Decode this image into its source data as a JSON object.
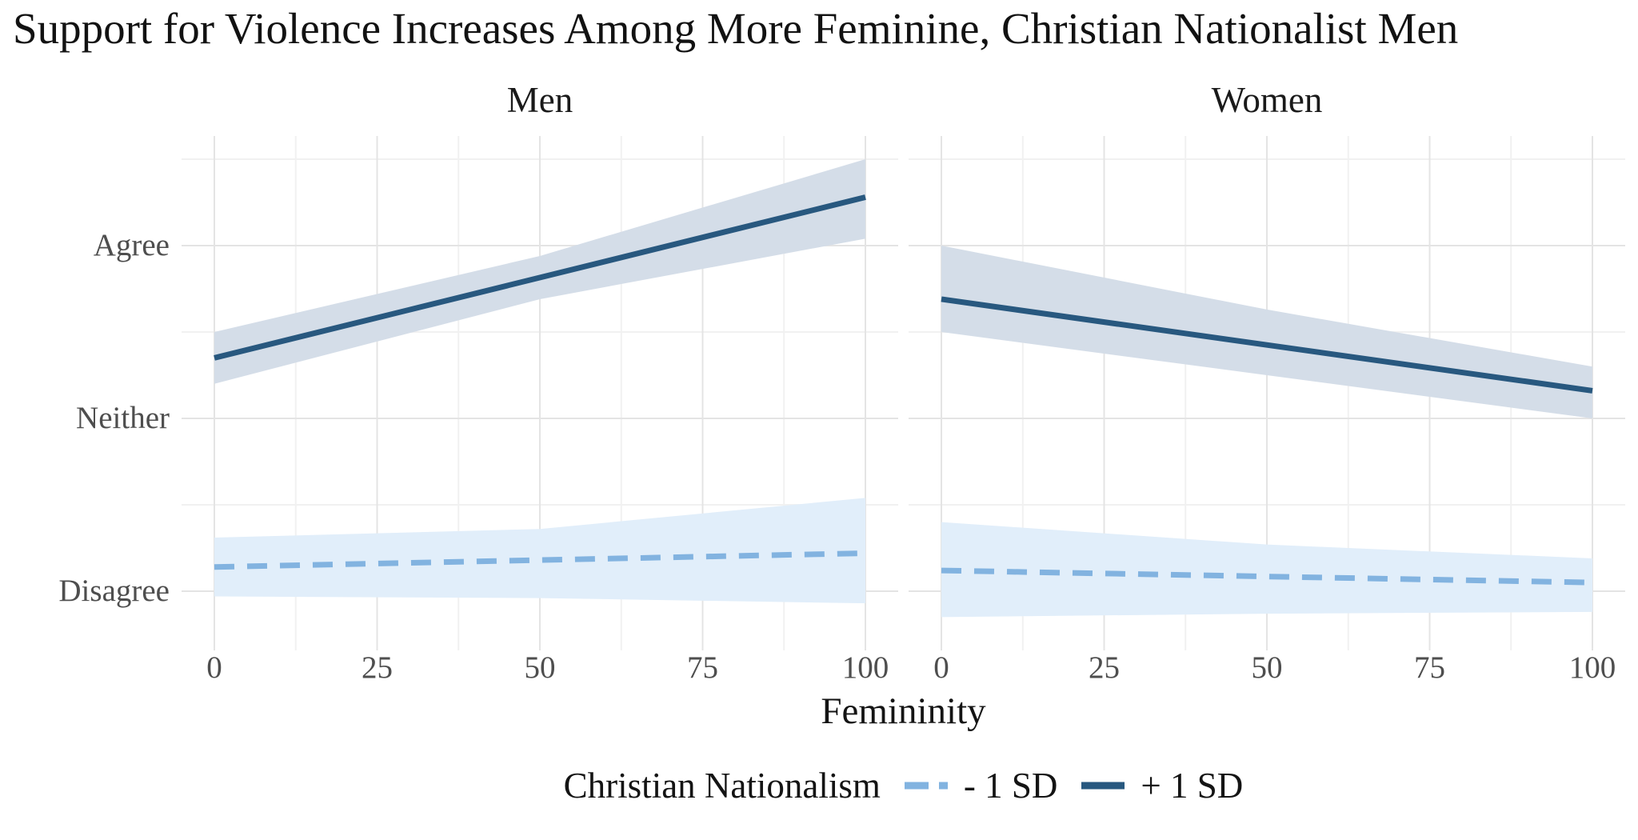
{
  "title": "Support for Violence Increases Among More Feminine, Christian Nationalist Men",
  "legend": {
    "title": "Christian Nationalism",
    "items": [
      {
        "label": "- 1 SD",
        "style": "dashed"
      },
      {
        "label": "+ 1 SD",
        "style": "solid"
      }
    ]
  },
  "colors": {
    "solid_line": "#28587f",
    "solid_ribbon": "#d4dde8",
    "dashed_line": "#82b3e0",
    "dashed_ribbon": "#e1eefa",
    "grid_major": "#e4e4e4",
    "grid_minor": "#f1f1f1",
    "tick_text": "#4e4e4e",
    "title_text": "#121212"
  },
  "chart_data": {
    "type": "line",
    "title": "Support for Violence Increases Among More Feminine, Christian Nationalist Men",
    "x": {
      "label": "Femininity",
      "ticks": [
        0,
        25,
        50,
        75,
        100
      ],
      "minor_ticks": [
        12.5,
        37.5,
        62.5,
        87.5
      ],
      "range": [
        0,
        100
      ]
    },
    "y": {
      "label": "",
      "ticks": [
        {
          "value": 1,
          "label": "Disagree"
        },
        {
          "value": 2,
          "label": "Neither"
        },
        {
          "value": 3,
          "label": "Agree"
        }
      ],
      "minor_ticks": [
        1.5,
        2.5,
        3.5
      ],
      "range": [
        0.66,
        3.63
      ]
    },
    "grid": {
      "major": true,
      "minor": true
    },
    "legend_position": "bottom",
    "facets": [
      {
        "label": "Men",
        "series": [
          {
            "name": "- 1 SD",
            "line": "dashed",
            "points": [
              {
                "x": 0,
                "y": 1.14
              },
              {
                "x": 100,
                "y": 1.22
              }
            ],
            "ribbon": [
              {
                "x": 0,
                "top": 1.31,
                "bottom": 0.97
              },
              {
                "x": 50,
                "top": 1.36,
                "bottom": 0.96
              },
              {
                "x": 100,
                "top": 1.54,
                "bottom": 0.93
              }
            ]
          },
          {
            "name": "+ 1 SD",
            "line": "solid",
            "points": [
              {
                "x": 0,
                "y": 2.35
              },
              {
                "x": 100,
                "y": 3.28
              }
            ],
            "ribbon": [
              {
                "x": 0,
                "top": 2.5,
                "bottom": 2.2
              },
              {
                "x": 50,
                "top": 2.94,
                "bottom": 2.69
              },
              {
                "x": 100,
                "top": 3.5,
                "bottom": 3.04
              }
            ]
          }
        ]
      },
      {
        "label": "Women",
        "series": [
          {
            "name": "- 1 SD",
            "line": "dashed",
            "points": [
              {
                "x": 0,
                "y": 1.12
              },
              {
                "x": 100,
                "y": 1.05
              }
            ],
            "ribbon": [
              {
                "x": 0,
                "top": 1.4,
                "bottom": 0.85
              },
              {
                "x": 50,
                "top": 1.27,
                "bottom": 0.87
              },
              {
                "x": 100,
                "top": 1.19,
                "bottom": 0.88
              }
            ]
          },
          {
            "name": "+ 1 SD",
            "line": "solid",
            "points": [
              {
                "x": 0,
                "y": 2.69
              },
              {
                "x": 100,
                "y": 2.16
              }
            ],
            "ribbon": [
              {
                "x": 0,
                "top": 3.0,
                "bottom": 2.5
              },
              {
                "x": 50,
                "top": 2.63,
                "bottom": 2.25
              },
              {
                "x": 100,
                "top": 2.3,
                "bottom": 2.0
              }
            ]
          }
        ]
      }
    ]
  }
}
